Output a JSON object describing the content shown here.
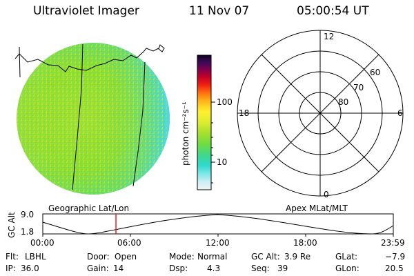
{
  "header": {
    "instrument": "Ultraviolet Imager",
    "date": "11 Nov 07",
    "time": "05:00:54 UT"
  },
  "colorbar": {
    "label": "photon cm⁻²s⁻¹",
    "ticks": [
      "100",
      "10"
    ]
  },
  "polar_plot": {
    "mlt_labels": {
      "top": "12",
      "right": "6",
      "bottom": "0",
      "left": "18"
    },
    "lat_labels": [
      "60",
      "70",
      "80"
    ]
  },
  "map_labels": {
    "geographic": "Geographic Lat/Lon",
    "apex": "Apex MLat/MLT"
  },
  "altitude_plot": {
    "ylabel": "GC Alt",
    "ytick_top": "9.0",
    "ytick_bottom": "1.8",
    "xticks": [
      "00:00",
      "06:00",
      "12:00",
      "18:00",
      "23:59"
    ],
    "current_time_marker_hours": 5.01
  },
  "status": {
    "filter": {
      "label": "Flt:",
      "value": "LBHL"
    },
    "ip": {
      "label": "IP:",
      "value": "36.0"
    },
    "door": {
      "label": "Door:",
      "value": "Open"
    },
    "gain": {
      "label": "Gain:",
      "value": "14"
    },
    "mode": {
      "label": "Mode:",
      "value": "Normal"
    },
    "dsp": {
      "label": "Dsp:",
      "value": "4.3"
    },
    "gc_alt": {
      "label": "GC Alt:",
      "value": "3.9 Re"
    },
    "seq": {
      "label": "Seq:",
      "value": "39"
    },
    "glat": {
      "label": "GLat:",
      "value": "−7.9"
    },
    "glon": {
      "label": "GLon:",
      "value": "20.5"
    }
  },
  "colors": {
    "disk_main": "#8fdc2a",
    "disk_edge": "#5fd8c8",
    "marker": "#e02020"
  }
}
